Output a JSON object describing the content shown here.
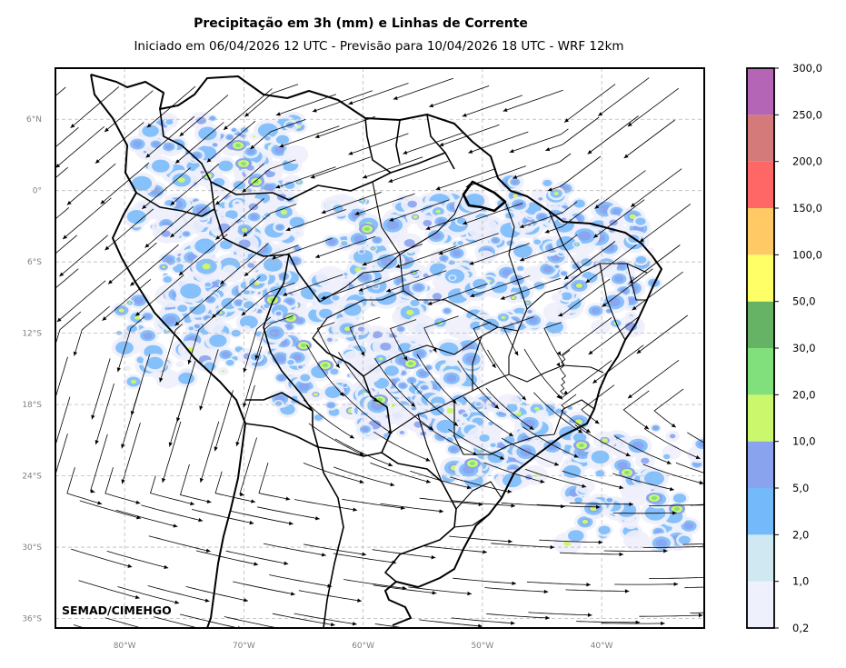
{
  "title": "Precipitação em 3h (mm) e Linhas de Corrente",
  "subtitle": "Iniciado em 06/04/2026 12 UTC - Previsão para 10/04/2026 18 UTC - WRF 12km",
  "credit": "SEMAD/CIMEHGO",
  "axes": {
    "lon_labels": [
      "80°W",
      "70°W",
      "60°W",
      "50°W",
      "40°W"
    ],
    "lon_values": [
      -80,
      -70,
      -60,
      -50,
      -40
    ],
    "lat_labels": [
      "6°N",
      "0°",
      "6°S",
      "12°S",
      "18°S",
      "24°S",
      "30°S",
      "36°S"
    ],
    "lat_values": [
      6,
      0,
      -6,
      -12,
      -18,
      -24,
      -30,
      -36
    ],
    "lon_range": [
      -85.8,
      -31.4
    ],
    "lat_range": [
      -36.8,
      10.3
    ],
    "grid": true
  },
  "colorbar": {
    "labels": [
      "0,2",
      "1,0",
      "2,0",
      "5,0",
      "10,0",
      "20,0",
      "30,0",
      "50,0",
      "100,0",
      "150,0",
      "200,0",
      "250,0",
      "300,0"
    ],
    "colors": [
      "#eef0fb",
      "#cfe8f2",
      "#74b9fa",
      "#8aa3ee",
      "#caf76c",
      "#82e07c",
      "#66b366",
      "#ffff66",
      "#ffc966",
      "#ff6666",
      "#d47a7a",
      "#b565b5"
    ]
  },
  "colors": {
    "coast": "#000000",
    "grid": "#b8b8b8",
    "streamline": "#000000"
  }
}
